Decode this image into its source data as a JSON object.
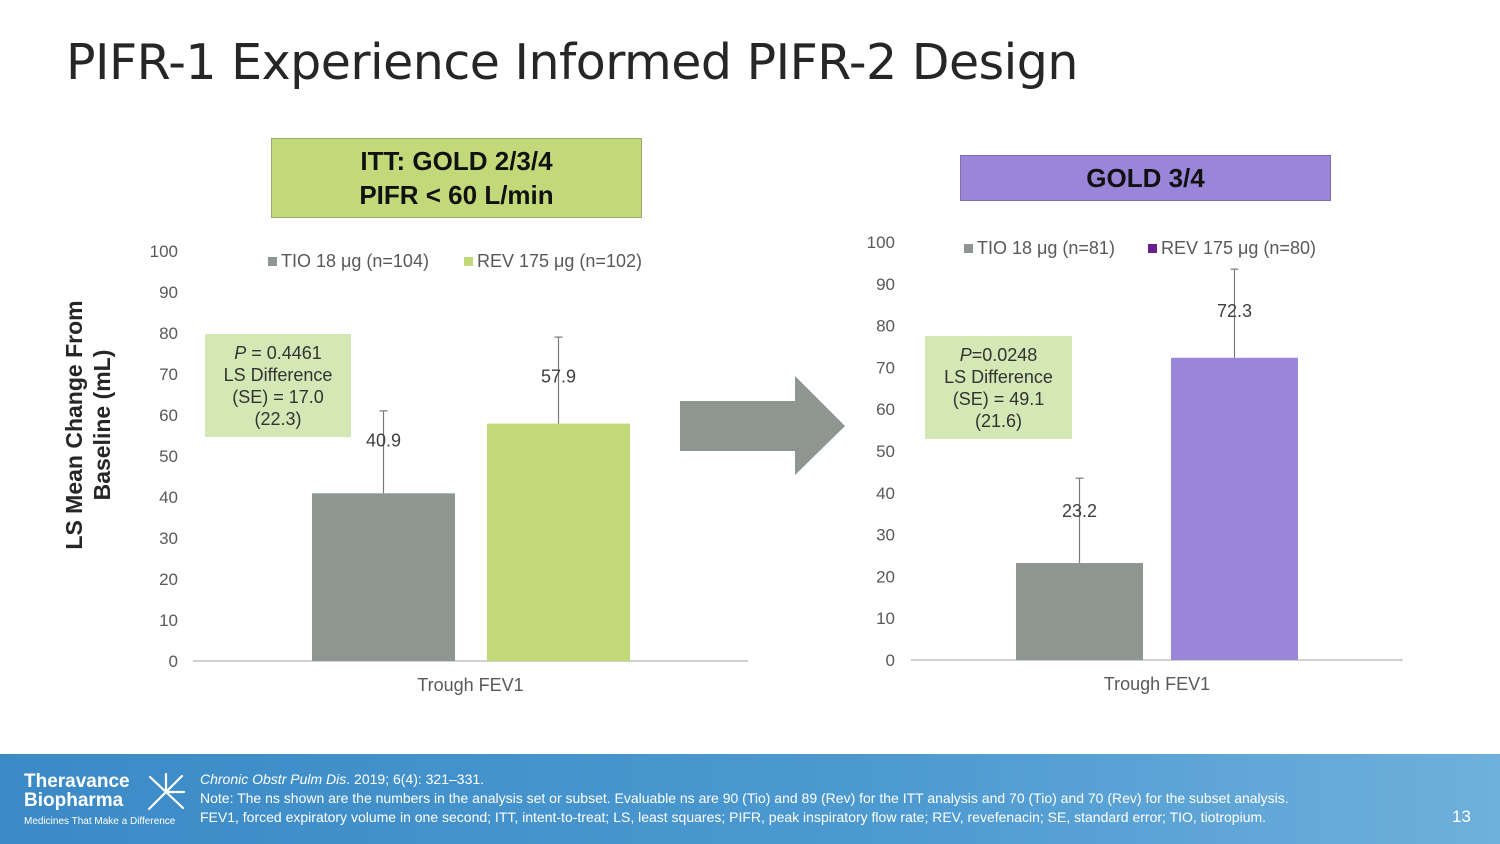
{
  "title": "PIFR-1 Experience Informed PIFR-2 Design",
  "y_axis_title": [
    "LS Mean Change From",
    "Baseline (mL)"
  ],
  "left_group": {
    "line1": "ITT: GOLD 2/3/4",
    "line2": "PIFR < 60 L/min"
  },
  "right_group": {
    "line1": "GOLD 3/4"
  },
  "left_stats": {
    "p_label": "P",
    "p_value": " = 0.4461",
    "line2": "LS Difference",
    "line3": "(SE) = 17.0",
    "line4": "(22.3)"
  },
  "right_stats": {
    "p_label": "P",
    "p_value": "=0.0248",
    "line2": "LS Difference",
    "line3": "(SE) = 49.1",
    "line4": "(21.6)"
  },
  "chart_data": [
    {
      "type": "bar",
      "title": "ITT: GOLD 2/3/4 PIFR < 60 L/min",
      "categories": [
        "Trough FEV1"
      ],
      "series": [
        {
          "name": "TIO 18 μg (n=104)",
          "values": [
            40.9
          ],
          "error_upper": [
            61.0
          ],
          "color": "#8f9591"
        },
        {
          "name": "REV 175 μg (n=102)",
          "values": [
            57.9
          ],
          "error_upper": [
            79.0
          ],
          "color": "#c2d97a"
        }
      ],
      "ylim": [
        0,
        100
      ],
      "yticks": [
        "0",
        "10",
        "20",
        "30",
        "40",
        "50",
        "60",
        "70",
        "80",
        "90",
        "100"
      ],
      "xlabel": "Trough FEV1",
      "ylabel": "LS Mean Change From Baseline (mL)",
      "legend": "top"
    },
    {
      "type": "bar",
      "title": "GOLD 3/4",
      "categories": [
        "Trough FEV1"
      ],
      "series": [
        {
          "name": "TIO 18 μg (n=81)",
          "values": [
            23.2
          ],
          "error_upper": [
            43.5
          ],
          "color": "#8f9591"
        },
        {
          "name": "REV 175 μg (n=80)",
          "values": [
            72.3
          ],
          "error_upper": [
            93.5
          ],
          "color": "#9a86d8"
        }
      ],
      "legend_markers": [
        "#8f9591",
        "#6b1f8c"
      ],
      "ylim": [
        0,
        100
      ],
      "yticks": [
        "0",
        "10",
        "20",
        "30",
        "40",
        "50",
        "60",
        "70",
        "80",
        "90",
        "100"
      ],
      "xlabel": "Trough FEV1",
      "legend": "top"
    }
  ],
  "footer": {
    "logo_line1": "Theravance",
    "logo_line2": "Biopharma",
    "tagline": "Medicines That Make a Difference",
    "citation_italic": "Chronic Obstr Pulm Dis",
    "citation_rest": ". 2019; 6(4): 321–331.",
    "note": "Note: The ns shown are the numbers in the analysis set or subset. Evaluable ns are 90 (Tio) and 89 (Rev) for the ITT analysis and 70 (Tio) and 70 (Rev) for the subset analysis.",
    "abbreviations": "FEV1, forced expiratory volume in one second; ITT, intent-to-treat; LS, least squares; PIFR, peak inspiratory flow rate; REV, revefenacin; SE, standard error; TIO, tiotropium.",
    "page_number": "13"
  },
  "colors": {
    "footer_bg": "#4d9ad1",
    "arrow": "#8f9591",
    "stat_box": "#d3e8b5"
  }
}
